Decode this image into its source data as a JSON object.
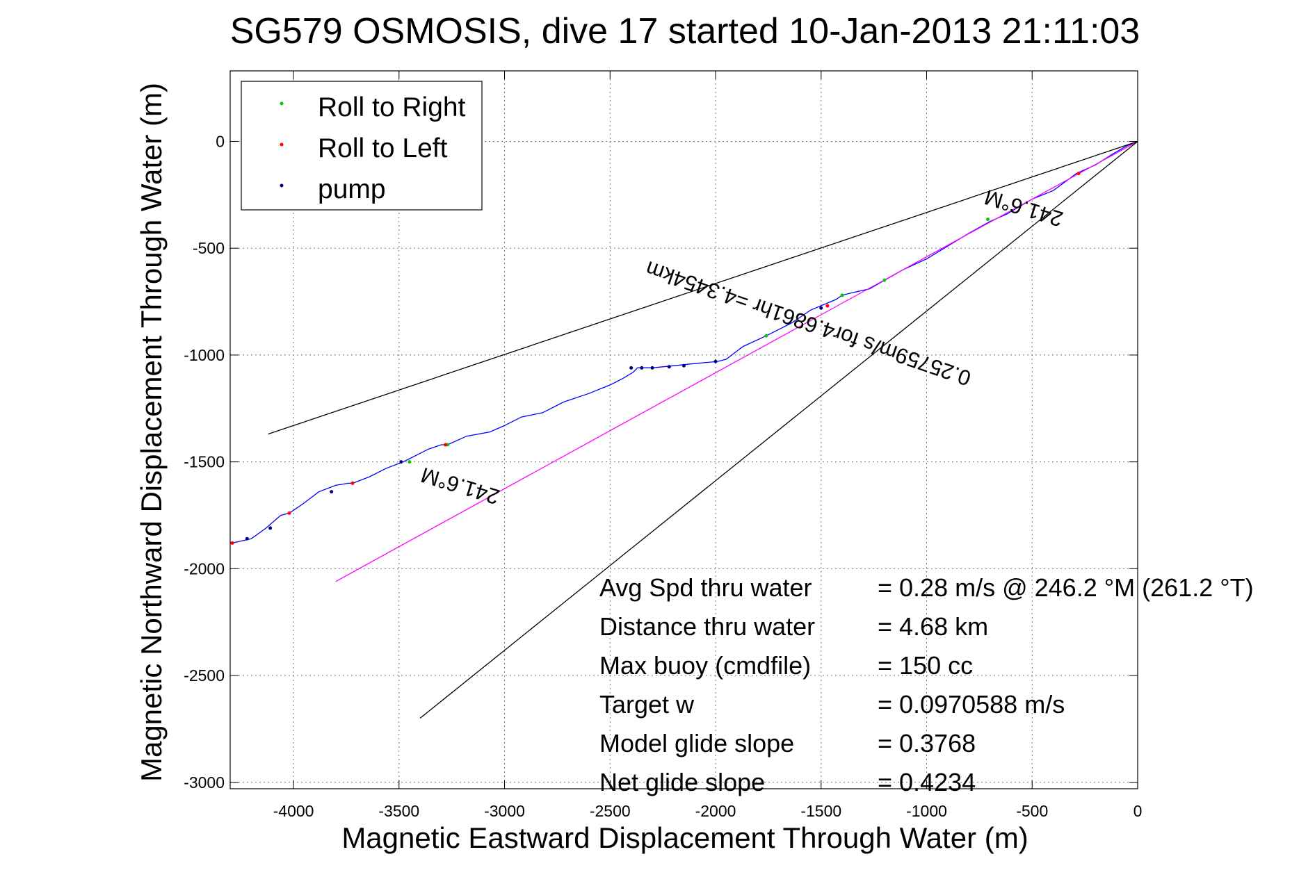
{
  "chart_data": {
    "type": "line",
    "title": "SG579 OSMOSIS, dive 17 started 10-Jan-2013 21:11:03",
    "xlabel": "Magnetic Eastward Displacement Through Water (m)",
    "ylabel": "Magnetic Northward Displacement Through Water (m)",
    "xlim": [
      -4300,
      0
    ],
    "ylim": [
      -3030,
      330
    ],
    "xticks": [
      -4000,
      -3500,
      -3000,
      -2500,
      -2000,
      -1500,
      -1000,
      -500,
      0
    ],
    "yticks": [
      0,
      -500,
      -1000,
      -1500,
      -2000,
      -2500,
      -3000
    ],
    "xticklabels": [
      "-4000",
      "-3500",
      "-3000",
      "-2500",
      "-2000",
      "-1500",
      "-1000",
      "-500",
      "0"
    ],
    "yticklabels": [
      "0",
      "-500",
      "-1000",
      "-1500",
      "-2000",
      "-2500",
      "-3000"
    ],
    "grid": true,
    "legend": {
      "location": "top-left",
      "entries": [
        {
          "label": "Roll to Right",
          "color": "#00cc00"
        },
        {
          "label": "Roll to Left",
          "color": "#ff0000"
        },
        {
          "label": "pump",
          "color": "#000080"
        }
      ]
    },
    "series": [
      {
        "color": "#0000ff",
        "x": [
          -4290,
          -4200,
          -4130,
          -4060,
          -4020,
          -3960,
          -3880,
          -3800,
          -3740,
          -3720,
          -3640,
          -3560,
          -3480,
          -3420,
          -3360,
          -3300,
          -3270,
          -3180,
          -3070,
          -3000,
          -2920,
          -2820,
          -2720,
          -2600,
          -2500,
          -2440,
          -2390,
          -2370,
          -2300,
          -2200,
          -2100,
          -1990,
          -1950,
          -1870,
          -1760,
          -1640,
          -1550,
          -1430,
          -1400,
          -1360,
          -1270,
          -1200,
          -1110,
          -1000,
          -900,
          -800,
          -700,
          -620,
          -500,
          -400,
          -290,
          -200,
          -120,
          -50,
          0
        ],
        "y": [
          -1880,
          -1860,
          -1810,
          -1750,
          -1740,
          -1700,
          -1640,
          -1610,
          -1600,
          -1600,
          -1570,
          -1530,
          -1500,
          -1470,
          -1440,
          -1420,
          -1420,
          -1380,
          -1360,
          -1330,
          -1290,
          -1270,
          -1220,
          -1180,
          -1140,
          -1110,
          -1080,
          -1060,
          -1060,
          -1050,
          -1040,
          -1030,
          -1020,
          -960,
          -910,
          -850,
          -790,
          -740,
          -720,
          -710,
          -690,
          -650,
          -600,
          -550,
          -490,
          -430,
          -375,
          -340,
          -270,
          -230,
          -150,
          -110,
          -60,
          -20,
          0
        ]
      },
      {
        "color": "#ff00ff",
        "x": [
          -3800,
          -2400,
          -1000,
          0
        ],
        "y": [
          -2060,
          -1300,
          -540,
          0
        ]
      },
      {
        "color": "#000000",
        "x": [
          -4120,
          0
        ],
        "y": [
          -1370,
          0
        ]
      },
      {
        "color": "#000000",
        "x": [
          -3400,
          0
        ],
        "y": [
          -2700,
          0
        ]
      },
      {
        "type": "scatter",
        "color": "#00cc00",
        "x": [
          -3270,
          -1760,
          -1400,
          -1200,
          -710,
          -3450
        ],
        "y": [
          -1420,
          -910,
          -720,
          -650,
          -365,
          -1500
        ]
      },
      {
        "type": "scatter",
        "color": "#ff0000",
        "x": [
          -4290,
          -4020,
          -3720,
          -3280,
          -1470,
          -280
        ],
        "y": [
          -1880,
          -1740,
          -1600,
          -1420,
          -770,
          -150
        ]
      },
      {
        "type": "scatter",
        "color": "#000080",
        "x": [
          -4220,
          -4110,
          -3820,
          -3490,
          -2400,
          -2350,
          -2300,
          -2220,
          -2150,
          -2000,
          -1500
        ],
        "y": [
          -1860,
          -1810,
          -1640,
          -1500,
          -1060,
          -1060,
          -1060,
          -1055,
          -1050,
          -1030,
          -780
        ]
      }
    ],
    "annotations": [
      {
        "text": "241.6°M",
        "x": -3200,
        "y": -1580,
        "rotation": 197
      },
      {
        "text": "241.6°M",
        "x": -530,
        "y": -280,
        "rotation": 197
      },
      {
        "text": "0.25759m/s for4.6861hr =4.3454km",
        "x": -1550,
        "y": -820,
        "rotation": 199
      }
    ],
    "stats": [
      {
        "label": "Avg Spd thru water",
        "value": "=  0.28 m/s @ 246.2 °M (261.2 °T)"
      },
      {
        "label": "Distance thru water",
        "value": "=  4.68 km"
      },
      {
        "label": "Max buoy (cmdfile)",
        "value": "= 150 cc"
      },
      {
        "label": "Target w",
        "value": "= 0.0970588 m/s"
      },
      {
        "label": "Model glide slope",
        "value": "= 0.3768"
      },
      {
        "label": "Net glide slope",
        "value": "= 0.4234"
      }
    ]
  }
}
